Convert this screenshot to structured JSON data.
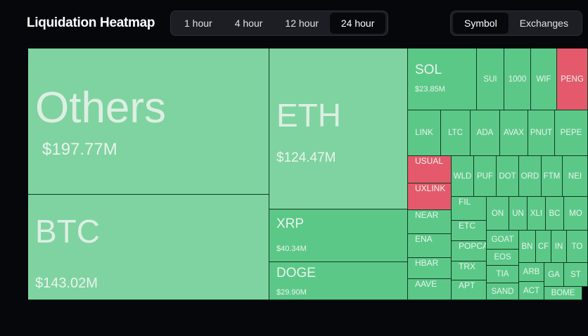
{
  "header": {
    "title": "Liquidation Heatmap",
    "time_tabs": [
      {
        "label": "1 hour",
        "active": false
      },
      {
        "label": "4 hour",
        "active": false
      },
      {
        "label": "12 hour",
        "active": false
      },
      {
        "label": "24 hour",
        "active": true
      }
    ],
    "group_tabs": [
      {
        "label": "Symbol",
        "active": true
      },
      {
        "label": "Exchanges",
        "active": false
      }
    ]
  },
  "colors": {
    "background": "#06070b",
    "tile_light_green": "#7fd3a0",
    "tile_green": "#5cc888",
    "tile_red": "#e45a6c"
  },
  "heatmap": {
    "tiles": [
      {
        "symbol": "Others",
        "value": "$197.77M"
      },
      {
        "symbol": "BTC",
        "value": "$143.02M"
      },
      {
        "symbol": "ETH",
        "value": "$124.47M"
      },
      {
        "symbol": "XRP",
        "value": "$40.34M"
      },
      {
        "symbol": "DOGE",
        "value": "$29.90M"
      },
      {
        "symbol": "SOL",
        "value": "$23.85M"
      },
      {
        "symbol": "SUI"
      },
      {
        "symbol": "1000"
      },
      {
        "symbol": "WIF"
      },
      {
        "symbol": "PENG"
      },
      {
        "symbol": "LINK"
      },
      {
        "symbol": "LTC"
      },
      {
        "symbol": "ADA"
      },
      {
        "symbol": "AVAX"
      },
      {
        "symbol": "PNUT"
      },
      {
        "symbol": "PEPE"
      },
      {
        "symbol": "USUAL"
      },
      {
        "symbol": "WLD"
      },
      {
        "symbol": "PUF"
      },
      {
        "symbol": "DOT"
      },
      {
        "symbol": "ORD"
      },
      {
        "symbol": "FTM"
      },
      {
        "symbol": "NEI"
      },
      {
        "symbol": "UXLINK"
      },
      {
        "symbol": "FIL"
      },
      {
        "symbol": "ON"
      },
      {
        "symbol": "UN"
      },
      {
        "symbol": "XLI"
      },
      {
        "symbol": "BC"
      },
      {
        "symbol": "MO"
      },
      {
        "symbol": "NEAR"
      },
      {
        "symbol": "ETC"
      },
      {
        "symbol": "GOAT"
      },
      {
        "symbol": "BN"
      },
      {
        "symbol": "CF"
      },
      {
        "symbol": "IN"
      },
      {
        "symbol": "TO"
      },
      {
        "symbol": "ENA"
      },
      {
        "symbol": "POPCA"
      },
      {
        "symbol": "EOS"
      },
      {
        "symbol": "HBAR"
      },
      {
        "symbol": "TRX"
      },
      {
        "symbol": "TIA"
      },
      {
        "symbol": "ARB"
      },
      {
        "symbol": "GA"
      },
      {
        "symbol": "ST"
      },
      {
        "symbol": "AAVE"
      },
      {
        "symbol": "APT"
      },
      {
        "symbol": "SAND"
      },
      {
        "symbol": "ACT"
      },
      {
        "symbol": "BOME"
      }
    ]
  }
}
